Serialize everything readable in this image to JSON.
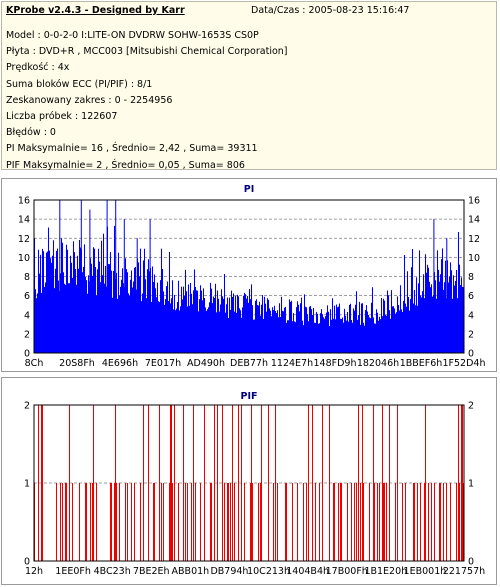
{
  "header": {
    "app_title": "KProbe v2.4.3 - Designed by Karr",
    "datetime": "Data/Czas : 2005-08-23 15:16:47"
  },
  "info_lines": [
    "Model : 0-0-2-0 I:LITE-ON DVDRW SOHW-1653S CS0P",
    "Płyta : DVD+R , MCC003 [Mitsubishi Chemical Corporation]",
    "Prędkość : 4x",
    "Suma bloków ECC (PI/PIF) : 8/1",
    "Zeskanowany zakres : 0 - 2254956",
    "Liczba próbek : 122607",
    "Błędów : 0",
    "PI Maksymalnie= 16 , Średnio= 2,42 , Suma= 39311",
    "PIF Maksymalnie= 2 , Średnio= 0,05 , Suma= 806"
  ],
  "colors": {
    "pi_bar": "#0000ff",
    "pif_bar": "#ee0000",
    "title_text": "#000080",
    "grid": "#808080",
    "info_bg": "#fffde9"
  },
  "chart_data": [
    {
      "type": "bar",
      "title": "PI",
      "ylim": [
        0,
        16
      ],
      "y_ticks": [
        "0",
        "2",
        "4",
        "6",
        "8",
        "10",
        "12",
        "14",
        "16"
      ],
      "x_tick_labels": [
        "8Ch",
        "20S8Fh",
        "4E696h",
        "7E017h",
        "AD490h",
        "DEB77h",
        "1124E7h",
        "148FD9h",
        "182046h",
        "1BBEF6h",
        "1F52D4h"
      ],
      "grid": true,
      "x_range": [
        0,
        2254956
      ],
      "series_summary": {
        "max": 16,
        "average": 2.42,
        "sum": 39311
      },
      "envelope": [
        {
          "x": 0.0,
          "y": 10
        },
        {
          "x": 0.03,
          "y": 11
        },
        {
          "x": 0.08,
          "y": 12
        },
        {
          "x": 0.13,
          "y": 11
        },
        {
          "x": 0.18,
          "y": 10
        },
        {
          "x": 0.22,
          "y": 10
        },
        {
          "x": 0.27,
          "y": 9
        },
        {
          "x": 0.32,
          "y": 8
        },
        {
          "x": 0.37,
          "y": 7
        },
        {
          "x": 0.42,
          "y": 7
        },
        {
          "x": 0.47,
          "y": 6
        },
        {
          "x": 0.52,
          "y": 6
        },
        {
          "x": 0.57,
          "y": 6
        },
        {
          "x": 0.62,
          "y": 5
        },
        {
          "x": 0.67,
          "y": 5
        },
        {
          "x": 0.72,
          "y": 5
        },
        {
          "x": 0.77,
          "y": 5
        },
        {
          "x": 0.82,
          "y": 6
        },
        {
          "x": 0.87,
          "y": 8
        },
        {
          "x": 0.92,
          "y": 9
        },
        {
          "x": 0.97,
          "y": 10
        },
        {
          "x": 1.0,
          "y": 9
        }
      ],
      "spikes": [
        {
          "x": 0.06,
          "y": 16
        },
        {
          "x": 0.11,
          "y": 16
        },
        {
          "x": 0.13,
          "y": 15
        },
        {
          "x": 0.17,
          "y": 16
        },
        {
          "x": 0.19,
          "y": 16
        },
        {
          "x": 0.21,
          "y": 14
        },
        {
          "x": 0.24,
          "y": 12
        },
        {
          "x": 0.27,
          "y": 14
        },
        {
          "x": 0.93,
          "y": 14
        },
        {
          "x": 0.96,
          "y": 12
        }
      ]
    },
    {
      "type": "bar",
      "title": "PIF",
      "ylim": [
        0,
        2
      ],
      "y_ticks": [
        "0",
        "1",
        "2"
      ],
      "x_tick_labels": [
        "12h",
        "1EE0Fh",
        "4BC23h",
        "7BE2Eh",
        "ABB01h",
        "DB794h",
        "10C213h",
        "1404B4h",
        "17B00Fh",
        "1B1E20h",
        "1EB001h",
        "221757h"
      ],
      "grid": true,
      "x_range": [
        0,
        2254956
      ],
      "series_summary": {
        "max": 2,
        "average": 0.05,
        "sum": 806
      }
    }
  ]
}
